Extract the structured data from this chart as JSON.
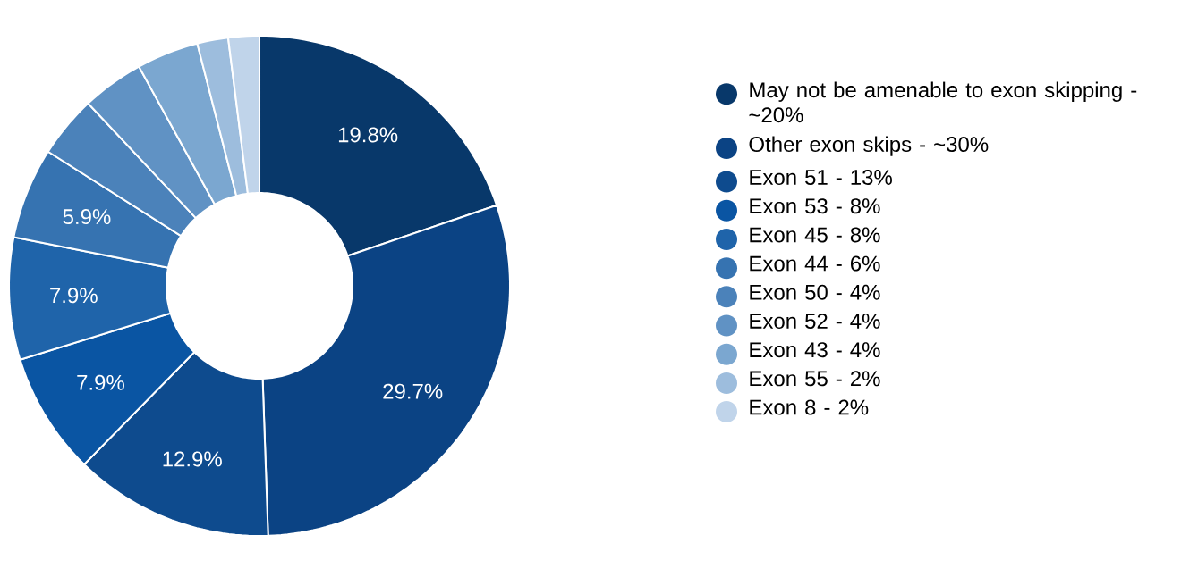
{
  "chart_data": {
    "type": "donut",
    "categories": [
      "May not be amenable to exon skipping - ~20%",
      "Other exon skips - ~30%",
      "Exon 51 - 13%",
      "Exon 53 - 8%",
      "Exon 45 - 8%",
      "Exon 44 - 6%",
      "Exon 50 - 4%",
      "Exon 52 - 4%",
      "Exon 43 - 4%",
      "Exon 55 - 2%",
      "Exon 8 - 2%"
    ],
    "values": [
      19.8,
      29.7,
      12.9,
      7.9,
      7.9,
      5.9,
      4.0,
      4.0,
      4.0,
      2.0,
      2.0
    ],
    "value_labels": [
      "19.8%",
      "29.7%",
      "12.9%",
      "7.9%",
      "7.9%",
      "5.9%",
      null,
      null,
      null,
      null,
      null
    ],
    "colors": [
      "#08386a",
      "#0b4384",
      "#0e4b8e",
      "#0a55a3",
      "#1f64aa",
      "#3673b1",
      "#4b82ba",
      "#6092c4",
      "#7ba7d0",
      "#9dbddd",
      "#c0d4ea"
    ],
    "legend": "right"
  }
}
